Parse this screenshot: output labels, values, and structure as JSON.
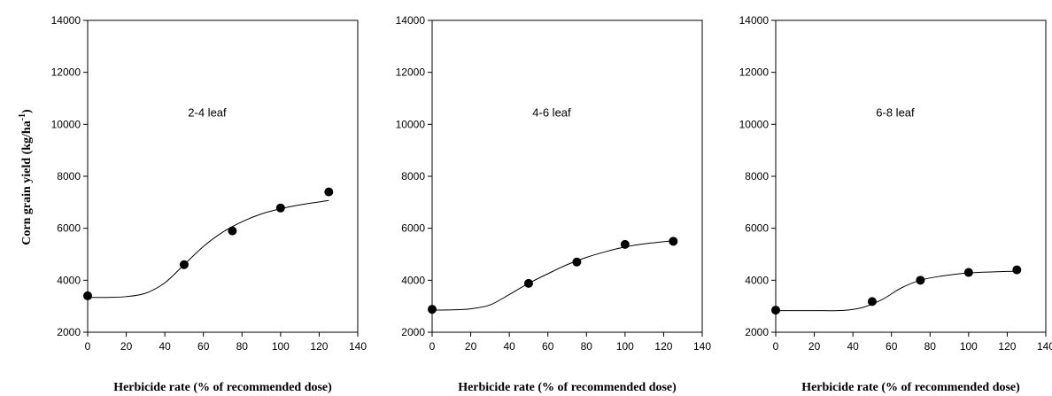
{
  "figure": {
    "ylabel": "Corn grain yield (kg/ha",
    "ylabel_sup": "-1",
    "ylabel_close": ")"
  },
  "chart_data": [
    {
      "type": "scatter",
      "annotation": "2-4 leaf",
      "xlabel": "Herbicide rate (% of recommended dose)",
      "ylabel": "Corn grain yield (kg/ha-1)",
      "xlim": [
        0,
        140
      ],
      "ylim": [
        2000,
        14000
      ],
      "xticks": [
        0,
        20,
        40,
        60,
        80,
        100,
        120,
        140
      ],
      "yticks": [
        2000,
        4000,
        6000,
        8000,
        10000,
        12000,
        14000
      ],
      "points": [
        {
          "x": 0,
          "y": 3400
        },
        {
          "x": 50,
          "y": 4600
        },
        {
          "x": 75,
          "y": 5900
        },
        {
          "x": 100,
          "y": 6780
        },
        {
          "x": 125,
          "y": 7400
        }
      ],
      "fit": [
        {
          "x": 0,
          "y": 3340
        },
        {
          "x": 10,
          "y": 3340
        },
        {
          "x": 20,
          "y": 3370
        },
        {
          "x": 30,
          "y": 3500
        },
        {
          "x": 40,
          "y": 3900
        },
        {
          "x": 50,
          "y": 4600
        },
        {
          "x": 60,
          "y": 5300
        },
        {
          "x": 70,
          "y": 5850
        },
        {
          "x": 80,
          "y": 6250
        },
        {
          "x": 90,
          "y": 6550
        },
        {
          "x": 100,
          "y": 6750
        },
        {
          "x": 110,
          "y": 6900
        },
        {
          "x": 125,
          "y": 7070
        }
      ]
    },
    {
      "type": "scatter",
      "annotation": "4-6 leaf",
      "xlabel": "Herbicide rate (% of recommended dose)",
      "ylabel": "Corn grain yield (kg/ha-1)",
      "xlim": [
        0,
        140
      ],
      "ylim": [
        2000,
        14000
      ],
      "xticks": [
        0,
        20,
        40,
        60,
        80,
        100,
        120,
        140
      ],
      "yticks": [
        2000,
        4000,
        6000,
        8000,
        10000,
        12000,
        14000
      ],
      "points": [
        {
          "x": 0,
          "y": 2880
        },
        {
          "x": 50,
          "y": 3880
        },
        {
          "x": 75,
          "y": 4700
        },
        {
          "x": 100,
          "y": 5380
        },
        {
          "x": 125,
          "y": 5500
        }
      ],
      "fit": [
        {
          "x": 0,
          "y": 2850
        },
        {
          "x": 10,
          "y": 2860
        },
        {
          "x": 20,
          "y": 2900
        },
        {
          "x": 30,
          "y": 3050
        },
        {
          "x": 40,
          "y": 3450
        },
        {
          "x": 50,
          "y": 3880
        },
        {
          "x": 60,
          "y": 4250
        },
        {
          "x": 70,
          "y": 4600
        },
        {
          "x": 80,
          "y": 4880
        },
        {
          "x": 90,
          "y": 5100
        },
        {
          "x": 100,
          "y": 5280
        },
        {
          "x": 110,
          "y": 5400
        },
        {
          "x": 125,
          "y": 5520
        }
      ]
    },
    {
      "type": "scatter",
      "annotation": "6-8 leaf",
      "xlabel": "Herbicide rate (% of recommended dose)",
      "ylabel": "Corn grain yield (kg/ha-1)",
      "xlim": [
        0,
        140
      ],
      "ylim": [
        2000,
        14000
      ],
      "xticks": [
        0,
        20,
        40,
        60,
        80,
        100,
        120,
        140
      ],
      "yticks": [
        2000,
        4000,
        6000,
        8000,
        10000,
        12000,
        14000
      ],
      "points": [
        {
          "x": 0,
          "y": 2850
        },
        {
          "x": 50,
          "y": 3180
        },
        {
          "x": 75,
          "y": 4000
        },
        {
          "x": 100,
          "y": 4300
        },
        {
          "x": 125,
          "y": 4400
        }
      ],
      "fit": [
        {
          "x": 0,
          "y": 2830
        },
        {
          "x": 20,
          "y": 2830
        },
        {
          "x": 35,
          "y": 2840
        },
        {
          "x": 45,
          "y": 2950
        },
        {
          "x": 55,
          "y": 3250
        },
        {
          "x": 65,
          "y": 3700
        },
        {
          "x": 75,
          "y": 4000
        },
        {
          "x": 85,
          "y": 4150
        },
        {
          "x": 100,
          "y": 4280
        },
        {
          "x": 125,
          "y": 4350
        }
      ]
    }
  ]
}
